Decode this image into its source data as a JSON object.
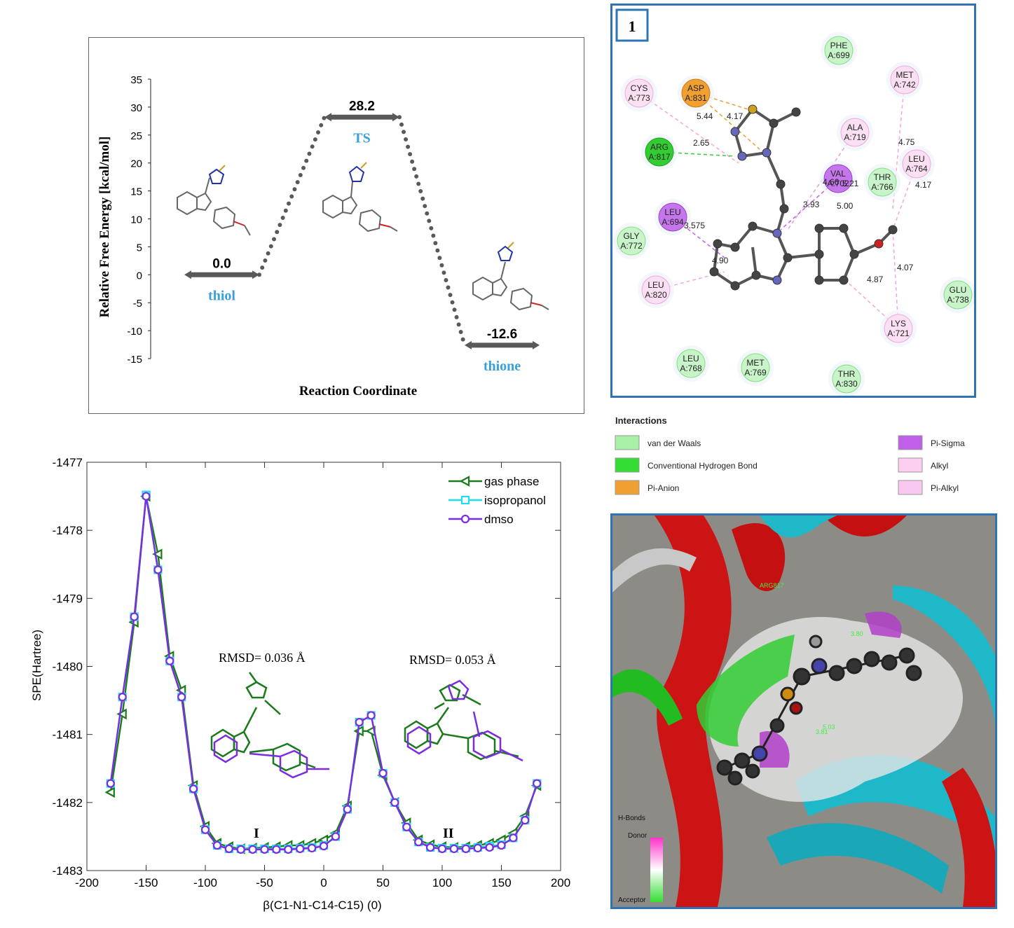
{
  "energy_profile": {
    "ylabel": "Relative Free Energy [kcal/mol]",
    "xlabel": "Reaction Coordinate",
    "states": [
      {
        "name": "thiol",
        "value": 0.0,
        "value_label": "0.0"
      },
      {
        "name": "TS",
        "value": 28.2,
        "value_label": "28.2"
      },
      {
        "name": "thione",
        "value": -12.6,
        "value_label": "-12.6"
      }
    ],
    "yticks": [
      "35",
      "30",
      "25",
      "20",
      "15",
      "10",
      "5",
      "0",
      "-5",
      "-10",
      "-15"
    ],
    "colors": {
      "level": "#595959",
      "label": "#3aa0d8"
    }
  },
  "docking_2d": {
    "panel_number": "1",
    "residues": [
      {
        "label": "PHE\nA:699",
        "type": "vdw"
      },
      {
        "label": "MET\nA:742",
        "type": "alkyl"
      },
      {
        "label": "CYS\nA:773",
        "type": "alkyl"
      },
      {
        "label": "ASP\nA:831",
        "type": "pianion"
      },
      {
        "label": "ALA\nA:719",
        "type": "alkyl"
      },
      {
        "label": "ARG\nA:817",
        "type": "hbond"
      },
      {
        "label": "LEU\nA:764",
        "type": "alkyl"
      },
      {
        "label": "VAL\nA:702",
        "type": "pisigma"
      },
      {
        "label": "THR\nA:766",
        "type": "vdw"
      },
      {
        "label": "LEU\nA:694",
        "type": "pisigma"
      },
      {
        "label": "GLY\nA:772",
        "type": "vdw"
      },
      {
        "label": "LEU\nA:820",
        "type": "alkyl"
      },
      {
        "label": "GLU\nA:738",
        "type": "vdw"
      },
      {
        "label": "LYS\nA:721",
        "type": "alkyl"
      },
      {
        "label": "LEU\nA:768",
        "type": "vdw"
      },
      {
        "label": "MET\nA:769",
        "type": "vdw"
      },
      {
        "label": "THR\nA:830",
        "type": "vdw"
      }
    ],
    "distances": [
      "5.44",
      "4.17",
      "2.65",
      "4.75",
      "4.17",
      "4.66",
      "5.21",
      "3.93",
      "5.00",
      "3.575",
      "4.90",
      "4.07",
      "4.87"
    ]
  },
  "interactions_legend": {
    "title": "Interactions",
    "items": [
      {
        "label": "van der Waals",
        "color": "#a8f0a8"
      },
      {
        "label": "Conventional Hydrogen Bond",
        "color": "#33dd33"
      },
      {
        "label": "Pi-Anion",
        "color": "#f0a030"
      },
      {
        "label": "Pi-Sigma",
        "color": "#c060e8"
      },
      {
        "label": "Alkyl",
        "color": "#fccff0"
      },
      {
        "label": "Pi-Alkyl",
        "color": "#f8c8f0"
      }
    ]
  },
  "docking_3d": {
    "hbond_title": "H-Bonds",
    "donor_label": "Donor",
    "acceptor_label": "Acceptor",
    "residue_labels": [
      "ARG817",
      "5.03",
      "3.80",
      "3.81"
    ]
  },
  "chart_data": {
    "type": "line",
    "xlabel": "β(C1-N1-C14-C15) (0)",
    "ylabel": "SPE(Hartree)",
    "xlim": [
      -200,
      200
    ],
    "ylim": [
      -1483,
      -1477
    ],
    "xticks": [
      -200,
      -150,
      -100,
      -50,
      0,
      50,
      100,
      150,
      200
    ],
    "yticks": [
      -1477,
      -1478,
      -1479,
      -1480,
      -1481,
      -1482,
      -1483
    ],
    "legend_position": "top-right",
    "x": [
      -180,
      -170,
      -160,
      -150,
      -140,
      -130,
      -120,
      -110,
      -100,
      -90,
      -80,
      -70,
      -60,
      -50,
      -40,
      -30,
      -20,
      -10,
      0,
      10,
      20,
      30,
      40,
      50,
      60,
      70,
      80,
      90,
      100,
      110,
      120,
      130,
      140,
      150,
      160,
      170,
      180
    ],
    "series": [
      {
        "name": "gas phase",
        "color": "#1b7a1b",
        "marker": "triangle-left",
        "values": [
          -1481.85,
          -1480.7,
          -1479.35,
          -1477.5,
          -1478.35,
          -1479.85,
          -1480.35,
          -1481.75,
          -1482.35,
          -1482.6,
          -1482.65,
          -1482.68,
          -1482.67,
          -1482.66,
          -1482.65,
          -1482.63,
          -1482.63,
          -1482.6,
          -1482.55,
          -1482.45,
          -1482.05,
          -1480.95,
          -1480.95,
          -1481.6,
          -1482.0,
          -1482.3,
          -1482.55,
          -1482.62,
          -1482.65,
          -1482.66,
          -1482.65,
          -1482.63,
          -1482.6,
          -1482.55,
          -1482.45,
          -1482.2,
          -1481.75
        ]
      },
      {
        "name": "isopropanol",
        "color": "#22dde8",
        "marker": "square",
        "values": [
          -1481.72,
          -1480.45,
          -1479.27,
          -1477.48,
          -1478.58,
          -1479.92,
          -1480.45,
          -1481.8,
          -1482.4,
          -1482.63,
          -1482.68,
          -1482.68,
          -1482.68,
          -1482.68,
          -1482.68,
          -1482.68,
          -1482.67,
          -1482.66,
          -1482.63,
          -1482.5,
          -1482.1,
          -1480.82,
          -1480.72,
          -1481.57,
          -1482.0,
          -1482.36,
          -1482.58,
          -1482.66,
          -1482.67,
          -1482.67,
          -1482.67,
          -1482.66,
          -1482.64,
          -1482.62,
          -1482.52,
          -1482.26,
          -1481.72
        ]
      },
      {
        "name": "dmso",
        "color": "#7b2be0",
        "marker": "circle",
        "values": [
          -1481.72,
          -1480.45,
          -1479.27,
          -1477.5,
          -1478.58,
          -1479.92,
          -1480.45,
          -1481.8,
          -1482.4,
          -1482.63,
          -1482.68,
          -1482.69,
          -1482.69,
          -1482.69,
          -1482.69,
          -1482.69,
          -1482.68,
          -1482.67,
          -1482.64,
          -1482.5,
          -1482.1,
          -1480.82,
          -1480.72,
          -1481.57,
          -1482.0,
          -1482.36,
          -1482.58,
          -1482.66,
          -1482.68,
          -1482.68,
          -1482.68,
          -1482.67,
          -1482.66,
          -1482.63,
          -1482.52,
          -1482.26,
          -1481.72
        ]
      }
    ],
    "annotations": [
      {
        "text": "RMSD= 0.036 Å"
      },
      {
        "text": "RMSD= 0.053 Å"
      },
      {
        "text": "I"
      },
      {
        "text": "II"
      }
    ]
  }
}
